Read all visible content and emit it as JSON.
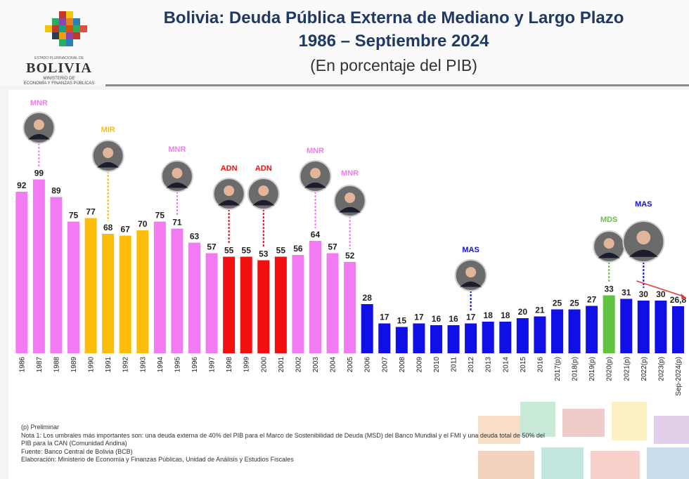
{
  "logo": {
    "word": "BOLIVIA",
    "top": "ESTADO PLURINACIONAL DE",
    "sub1": "MINISTERIO DE",
    "sub2": "ECONOMÍA Y FINANZAS PÚBLICAS"
  },
  "header": {
    "title_line1": "Bolivia: Deuda Pública Externa de Mediano y Largo Plazo",
    "title_line2": "1986 – Septiembre 2024",
    "title_line3": "(En porcentaje del PIB)"
  },
  "notes": {
    "preliminar": "(p) Preliminar",
    "nota1a": "Nota 1: Los umbrales más importantes son: una deuda externa de 40% del PIB para el Marco de Sostenibilidad de Deuda (MSD) del Banco Mundial y el FMI y una deuda total de 50% del",
    "nota1b": "PIB para la CAN (Comunidad Andina)",
    "fuente": "Fuente: Banco Central de Bolivia (BCB)",
    "elaboracion": "Elaboración: Ministerio de Economía y Finanzas Públicas, Unidad de Análisis y Estudios Fiscales"
  },
  "colors": {
    "MNR": "#f27af2",
    "MIR": "#fbbd0a",
    "ADN": "#f20f0f",
    "MAS": "#1010e6",
    "MDS": "#62c242"
  },
  "chart_data": {
    "type": "bar",
    "title": "Bolivia: Deuda Pública Externa de Mediano y Largo Plazo",
    "ylabel": "",
    "ylim": [
      0,
      105
    ],
    "categories": [
      "1986",
      "1987",
      "1988",
      "1989",
      "1990",
      "1991",
      "1992",
      "1993",
      "1994",
      "1995",
      "1996",
      "1997",
      "1998",
      "1999",
      "2000",
      "2001",
      "2002",
      "2003",
      "2004",
      "2005",
      "2006",
      "2007",
      "2008",
      "2009",
      "2010",
      "2011",
      "2012",
      "2013",
      "2014",
      "2015",
      "2016",
      "2017(p)",
      "2018(p)",
      "2019(p)",
      "2020(p)",
      "2021(p)",
      "2022(p)",
      "2023(p)",
      "Sep-2024(p)"
    ],
    "values": [
      92,
      99,
      89,
      75,
      77,
      68,
      67,
      70,
      75,
      71,
      63,
      57,
      55,
      55,
      53,
      55,
      56,
      64,
      57,
      52,
      28,
      17,
      15,
      17,
      16,
      16,
      17,
      18,
      18,
      20,
      21,
      25,
      25,
      27,
      33,
      31,
      30,
      30,
      26.8
    ],
    "value_labels": [
      "92",
      "99",
      "89",
      "75",
      "77",
      "68",
      "67",
      "70",
      "75",
      "71",
      "63",
      "57",
      "55",
      "55",
      "53",
      "55",
      "56",
      "64",
      "57",
      "52",
      "28",
      "17",
      "15",
      "17",
      "16",
      "16",
      "17",
      "18",
      "18",
      "20",
      "21",
      "25",
      "25",
      "27",
      "33",
      "31",
      "30",
      "30",
      "26,8"
    ],
    "party": [
      "MNR",
      "MNR",
      "MNR",
      "MNR",
      "MIR",
      "MIR",
      "MIR",
      "MIR",
      "MNR",
      "MNR",
      "MNR",
      "MNR",
      "ADN",
      "ADN",
      "ADN",
      "ADN",
      "MNR",
      "MNR",
      "MNR",
      "MNR",
      "MAS",
      "MAS",
      "MAS",
      "MAS",
      "MAS",
      "MAS",
      "MAS",
      "MAS",
      "MAS",
      "MAS",
      "MAS",
      "MAS",
      "MAS",
      "MAS",
      "MDS",
      "MAS",
      "MAS",
      "MAS",
      "MAS"
    ],
    "annotations": [
      {
        "label": "MNR",
        "index": 1
      },
      {
        "label": "MIR",
        "index": 5
      },
      {
        "label": "MNR",
        "index": 9
      },
      {
        "label": "ADN",
        "index": 12
      },
      {
        "label": "ADN",
        "index": 14
      },
      {
        "label": "MNR",
        "index": 17
      },
      {
        "label": "MNR",
        "index": 19
      },
      {
        "label": "MAS",
        "index": 26
      },
      {
        "label": "MDS",
        "index": 34
      },
      {
        "label": "MAS",
        "index": 36
      }
    ]
  }
}
